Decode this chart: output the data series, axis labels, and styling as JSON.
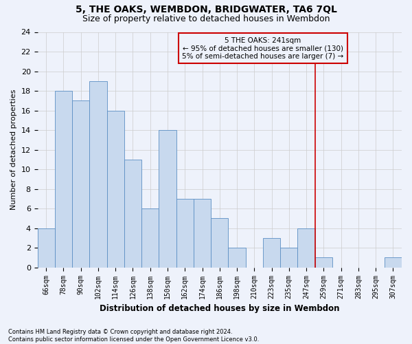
{
  "title": "5, THE OAKS, WEMBDON, BRIDGWATER, TA6 7QL",
  "subtitle": "Size of property relative to detached houses in Wembdon",
  "xlabel": "Distribution of detached houses by size in Wembdon",
  "ylabel": "Number of detached properties",
  "footnote": "Contains HM Land Registry data © Crown copyright and database right 2024.\nContains public sector information licensed under the Open Government Licence v3.0.",
  "bin_labels": [
    "66sqm",
    "78sqm",
    "90sqm",
    "102sqm",
    "114sqm",
    "126sqm",
    "138sqm",
    "150sqm",
    "162sqm",
    "174sqm",
    "186sqm",
    "198sqm",
    "210sqm",
    "223sqm",
    "235sqm",
    "247sqm",
    "259sqm",
    "271sqm",
    "283sqm",
    "295sqm",
    "307sqm"
  ],
  "bar_values": [
    4,
    18,
    17,
    19,
    16,
    11,
    6,
    14,
    7,
    7,
    5,
    2,
    0,
    3,
    2,
    4,
    1,
    0,
    0,
    0,
    1
  ],
  "bar_color": "#c8d9ee",
  "bar_edge_color": "#5b8ec4",
  "grid_color": "#cccccc",
  "vline_x": 15.5,
  "vline_color": "#cc0000",
  "annotation_text": "5 THE OAKS: 241sqm\n← 95% of detached houses are smaller (130)\n5% of semi-detached houses are larger (7) →",
  "annotation_box_color": "#cc0000",
  "ylim": [
    0,
    24
  ],
  "yticks": [
    0,
    2,
    4,
    6,
    8,
    10,
    12,
    14,
    16,
    18,
    20,
    22,
    24
  ],
  "background_color": "#eef2fb",
  "title_fontsize": 10,
  "subtitle_fontsize": 9,
  "footnote_fontsize": 6.0
}
